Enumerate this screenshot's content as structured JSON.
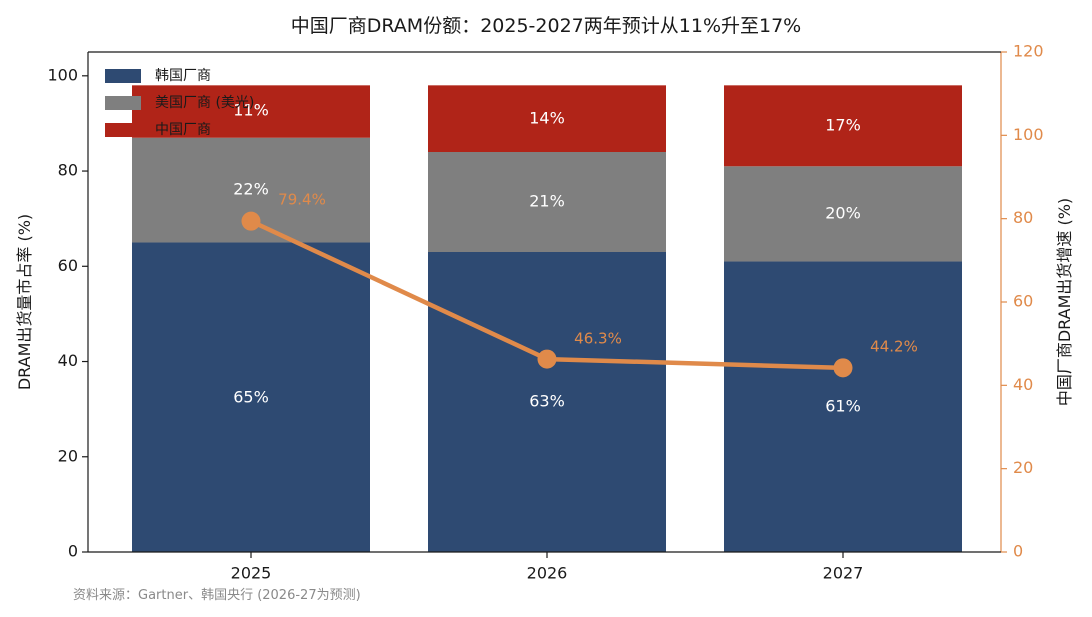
{
  "chart_data": {
    "type": "bar",
    "title": "中国厂商DRAM份额：2025-2027两年预计从11%升至17%",
    "categories": [
      "2025",
      "2026",
      "2027"
    ],
    "series": [
      {
        "name": "韩国厂商",
        "values": [
          65,
          63,
          61
        ],
        "labels": [
          "65%",
          "63%",
          "61%"
        ],
        "color": "#2e4a72"
      },
      {
        "name": "美国厂商 (美光)",
        "values": [
          22,
          21,
          20
        ],
        "labels": [
          "22%",
          "21%",
          "20%"
        ],
        "color": "#7f7f7f"
      },
      {
        "name": "中国厂商",
        "values": [
          11,
          14,
          17
        ],
        "labels": [
          "11%",
          "14%",
          "17%"
        ],
        "color": "#b02418"
      }
    ],
    "line_series": {
      "name": "中国厂商DRAM出货增速",
      "values": [
        79.4,
        46.3,
        44.2
      ],
      "labels": [
        "79.4%",
        "46.3%",
        "44.2%"
      ],
      "color": "#e08a4a",
      "axis": "right"
    },
    "ylabel": "DRAM出货量市占率 (%)",
    "ylim": [
      0,
      105
    ],
    "yticks": [
      0,
      20,
      40,
      60,
      80,
      100
    ],
    "y2label": "中国厂商DRAM出货增速 (%)",
    "y2lim": [
      0,
      120
    ],
    "y2ticks": [
      0,
      20,
      40,
      60,
      80,
      100,
      120
    ],
    "legend_position": "top-left",
    "source": "资料来源：Gartner、韩国央行 (2026-27为预测)"
  }
}
